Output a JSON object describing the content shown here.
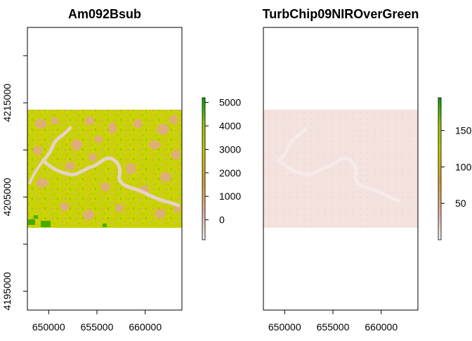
{
  "chart_data": [
    {
      "type": "heatmap",
      "title": "Am092Bsub",
      "xlabel": "",
      "ylabel": "",
      "x_ticks": [
        "650000",
        "655000",
        "660000"
      ],
      "y_ticks": [
        "4195000",
        "4205000",
        "4215000"
      ],
      "xlim": [
        647800,
        663800
      ],
      "ylim": [
        4193000,
        4223000
      ],
      "raster_extent": {
        "x": [
          647800,
          663800
        ],
        "y": [
          4201700,
          4214100
        ]
      },
      "legend": {
        "ticks": [
          "0",
          "1000",
          "2000",
          "3000",
          "4000",
          "5000"
        ],
        "tick_values": [
          0,
          1000,
          2000,
          3000,
          4000,
          5000
        ],
        "range": [
          -850,
          5200
        ],
        "colors": [
          "#f2f2f2",
          "#e8b3a6",
          "#d8a030",
          "#c8c800",
          "#8fc800",
          "#00a600"
        ]
      },
      "dominant_colors": [
        "#c8d400",
        "#e7a88a",
        "#e4cfc6",
        "#38a800"
      ]
    },
    {
      "type": "heatmap",
      "title": "TurbChip09NIROverGreen",
      "xlabel": "",
      "ylabel": "",
      "x_ticks": [
        "650000",
        "655000",
        "660000"
      ],
      "y_ticks": [],
      "xlim": [
        647800,
        663800
      ],
      "ylim": [
        4193000,
        4223000
      ],
      "raster_extent": {
        "x": [
          647800,
          663800
        ],
        "y": [
          4201700,
          4214100
        ]
      },
      "legend": {
        "ticks": [
          "50",
          "100",
          "150"
        ],
        "tick_values": [
          50,
          100,
          150
        ],
        "range": [
          0,
          195
        ],
        "colors": [
          "#f2f2f2",
          "#e8b3a6",
          "#d8a030",
          "#c8c800",
          "#8fc800",
          "#00a600"
        ]
      },
      "dominant_colors": [
        "#f3e1de",
        "#efe3e0"
      ]
    }
  ]
}
